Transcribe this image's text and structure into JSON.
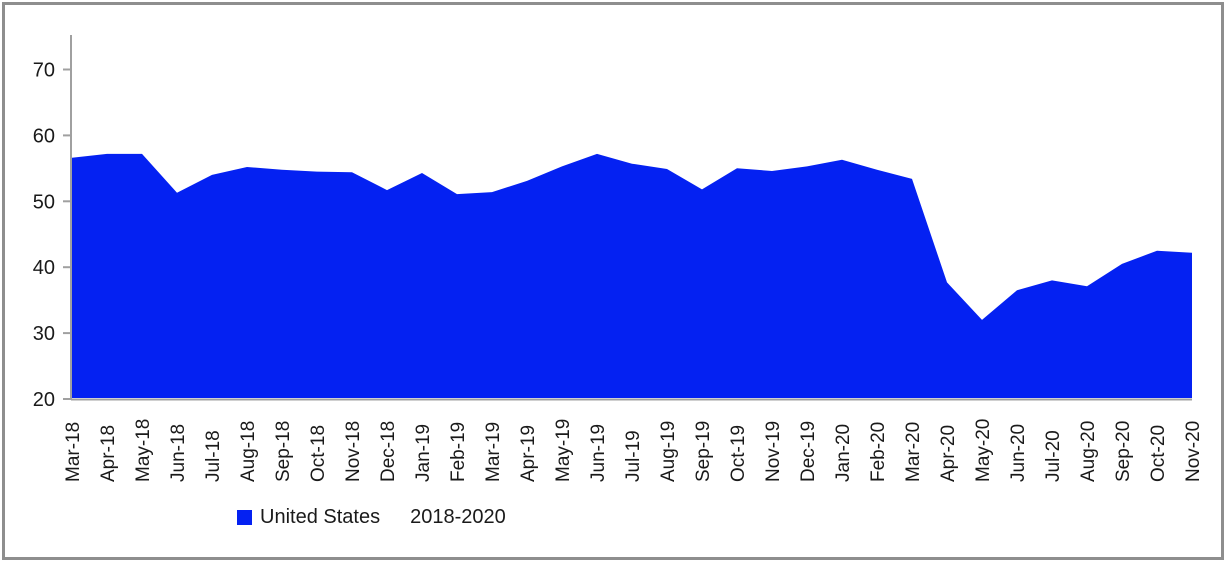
{
  "page": {
    "background": "#ffffff",
    "frame_border_color": "#8e8e8e"
  },
  "chart_data": {
    "type": "area",
    "title": "",
    "xlabel": "",
    "ylabel": "",
    "categories": [
      "Mar-18",
      "Apr-18",
      "May-18",
      "Jun-18",
      "Jul-18",
      "Aug-18",
      "Sep-18",
      "Oct-18",
      "Nov-18",
      "Dec-18",
      "Jan-19",
      "Feb-19",
      "Mar-19",
      "Apr-19",
      "May-19",
      "Jun-19",
      "Jul-19",
      "Aug-19",
      "Sep-19",
      "Oct-19",
      "Nov-19",
      "Dec-19",
      "Jan-20",
      "Feb-20",
      "Mar-20",
      "Apr-20",
      "May-20",
      "Jun-20",
      "Jul-20",
      "Aug-20",
      "Sep-20",
      "Oct-20",
      "Nov-20"
    ],
    "series": [
      {
        "name": "United States",
        "color": "#0421F2",
        "values": [
          56.6,
          57.2,
          57.2,
          51.3,
          54.0,
          55.2,
          54.8,
          54.5,
          54.4,
          51.7,
          54.3,
          51.1,
          51.4,
          53.1,
          55.3,
          57.2,
          55.7,
          54.9,
          51.8,
          55.0,
          54.6,
          55.3,
          56.3,
          54.8,
          53.4,
          37.7,
          32.0,
          36.5,
          38.0,
          37.1,
          40.5,
          42.5,
          42.2
        ]
      }
    ],
    "ylim": [
      20,
      75
    ],
    "yticks": [
      20,
      30,
      40,
      50,
      60,
      70
    ],
    "grid": false,
    "legend_position": "bottom",
    "annotation": "2018-2020",
    "axis_color": "#a0a0a0",
    "text_color": "#1a1a1a"
  }
}
